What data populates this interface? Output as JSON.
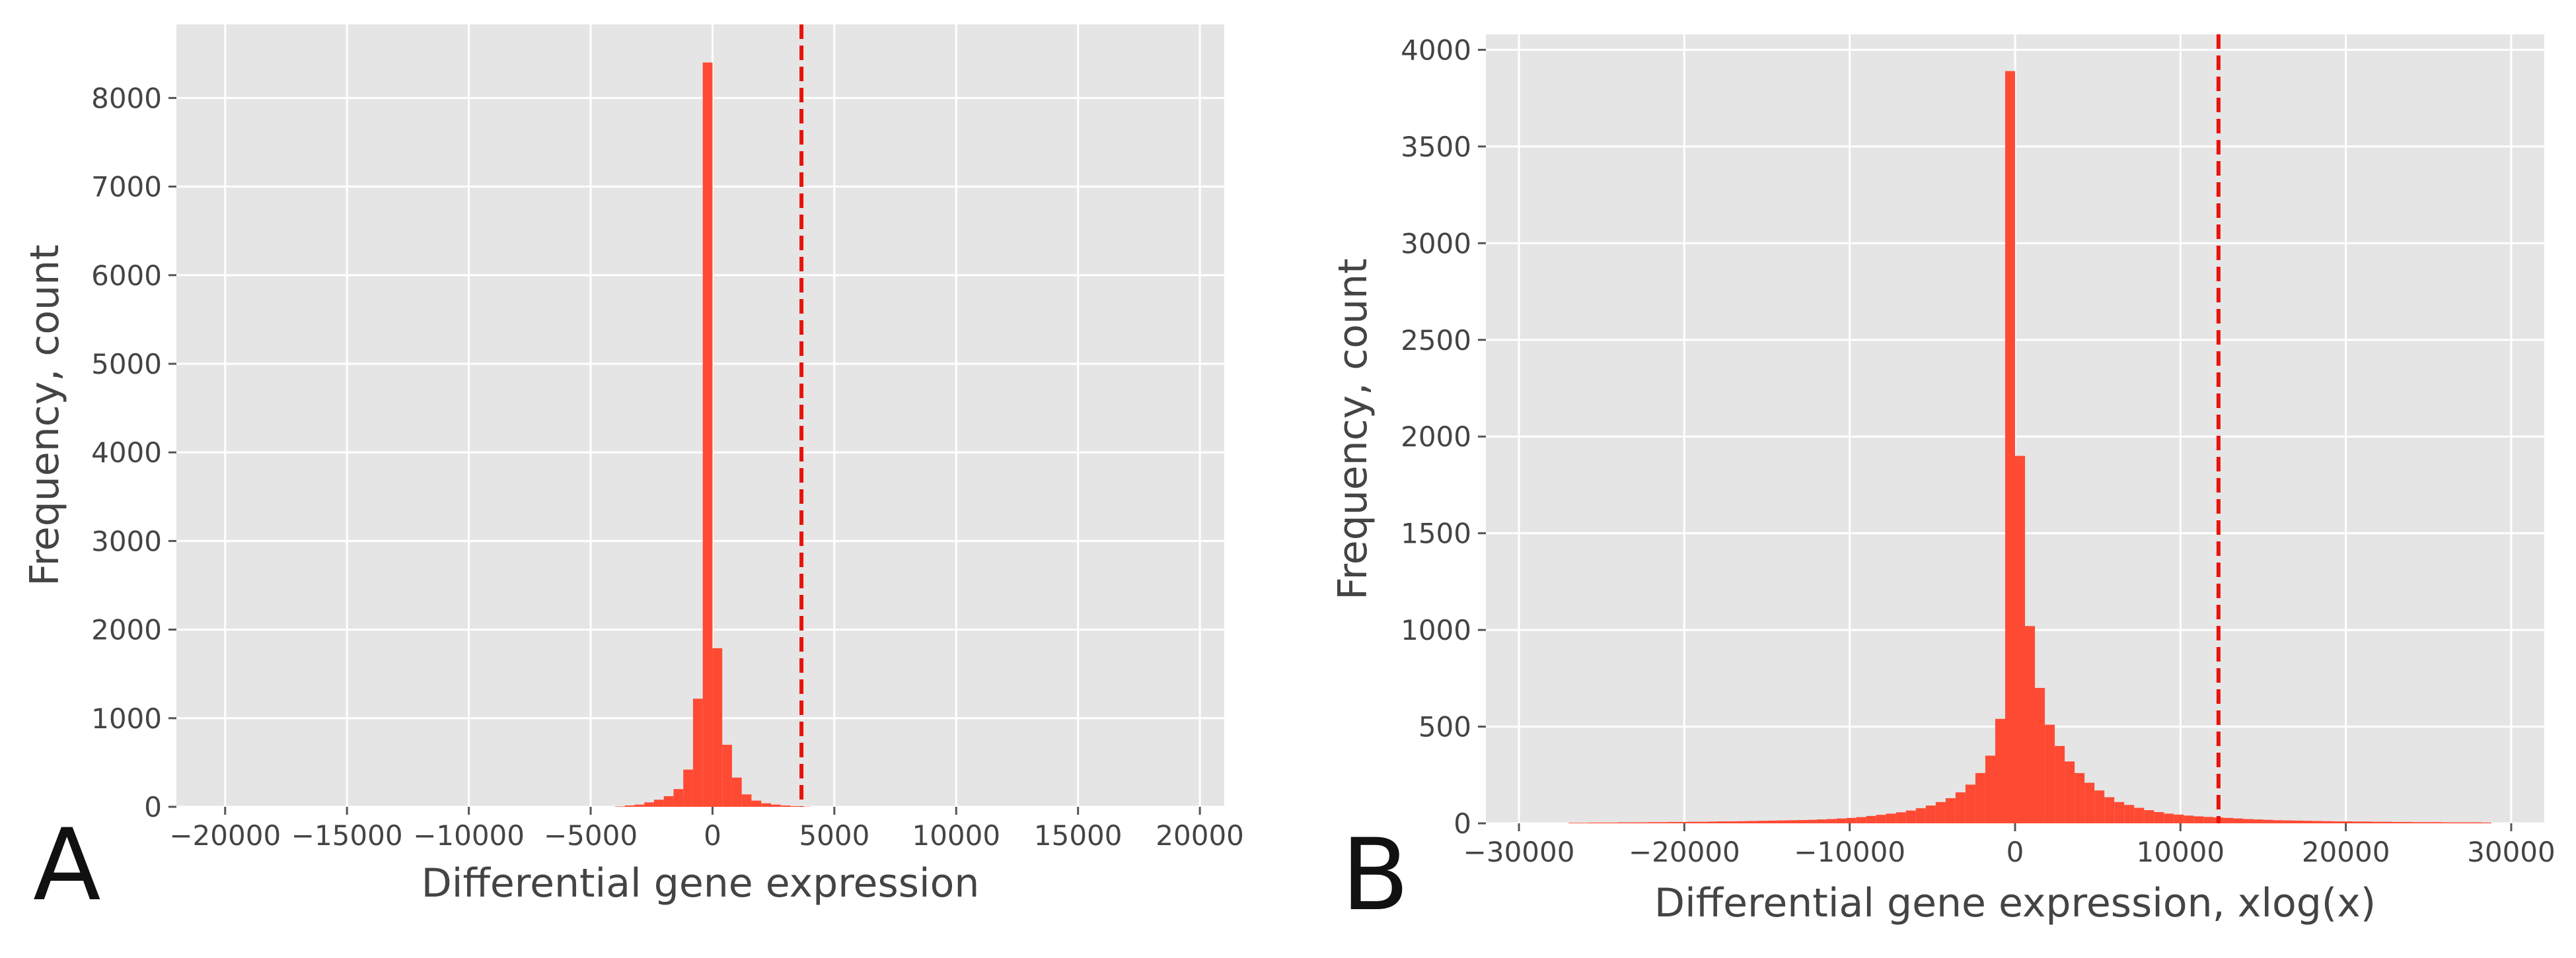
{
  "chart_data": [
    {
      "panel_label": "A",
      "type": "bar",
      "subtype": "histogram",
      "xlabel": "Differential gene expression",
      "ylabel": "Frequency, count",
      "xlim": [
        -22000,
        21000
      ],
      "ylim": [
        0,
        8830
      ],
      "xticks": [
        -20000,
        -15000,
        -10000,
        -5000,
        0,
        5000,
        10000,
        15000,
        20000
      ],
      "xtick_labels": [
        "−20000",
        "−15000",
        "−10000",
        "−5000",
        "0",
        "5000",
        "10000",
        "15000",
        "20000"
      ],
      "yticks": [
        0,
        1000,
        2000,
        3000,
        4000,
        5000,
        6000,
        7000,
        8000
      ],
      "ytick_labels": [
        "0",
        "1000",
        "2000",
        "3000",
        "4000",
        "5000",
        "6000",
        "7000",
        "8000"
      ],
      "bin_width": 400,
      "bins_start": [
        -4000,
        -3600,
        -3200,
        -2800,
        -2400,
        -2000,
        -1600,
        -1200,
        -800,
        -400,
        0,
        400,
        800,
        1200,
        1600,
        2000,
        2400,
        2800,
        3200,
        3600
      ],
      "values": [
        5,
        15,
        25,
        50,
        80,
        120,
        200,
        420,
        1220,
        8400,
        1790,
        700,
        330,
        140,
        70,
        40,
        25,
        15,
        8,
        3
      ],
      "reference_line_x": 3650,
      "grid": true,
      "colors": {
        "bars": "#ff4a33",
        "reference_line": "#e8130b",
        "background": "#e5e5e5"
      }
    },
    {
      "panel_label": "B",
      "type": "bar",
      "subtype": "histogram",
      "xlabel": "Differential gene expression, xlog(x)",
      "ylabel": "Frequency, count",
      "xlim": [
        -32000,
        32000
      ],
      "ylim": [
        0,
        4080
      ],
      "xticks": [
        -30000,
        -20000,
        -10000,
        0,
        10000,
        20000,
        30000
      ],
      "xtick_labels": [
        "−30000",
        "−20000",
        "−10000",
        "0",
        "10000",
        "20000",
        "30000"
      ],
      "yticks": [
        0,
        500,
        1000,
        1500,
        2000,
        2500,
        3000,
        3500,
        4000
      ],
      "ytick_labels": [
        "0",
        "500",
        "1000",
        "1500",
        "2000",
        "2500",
        "3000",
        "3500",
        "4000"
      ],
      "bin_width": 600,
      "bins_start": [
        -27000,
        -26400,
        -25800,
        -25200,
        -24600,
        -24000,
        -23400,
        -22800,
        -22200,
        -21600,
        -21000,
        -20400,
        -19800,
        -19200,
        -18600,
        -18000,
        -17400,
        -16800,
        -16200,
        -15600,
        -15000,
        -14400,
        -13800,
        -13200,
        -12600,
        -12000,
        -11400,
        -10800,
        -10200,
        -9600,
        -9000,
        -8400,
        -7800,
        -7200,
        -6600,
        -6000,
        -5400,
        -4800,
        -4200,
        -3600,
        -3000,
        -2400,
        -1800,
        -1200,
        -600,
        0,
        600,
        1200,
        1800,
        2400,
        3000,
        3600,
        4200,
        4800,
        5400,
        6000,
        6600,
        7200,
        7800,
        8400,
        9000,
        9600,
        10200,
        10800,
        11400,
        12000,
        12600,
        13200,
        13800,
        14400,
        15000,
        15600,
        16200,
        16800,
        17400,
        18000,
        18600,
        19200,
        19800,
        20400,
        21000,
        21600,
        22200,
        22800,
        23400,
        24000,
        24600,
        25200,
        25800,
        26400,
        27000,
        27600,
        28200
      ],
      "values": [
        3,
        3,
        4,
        4,
        4,
        5,
        5,
        5,
        6,
        6,
        7,
        7,
        8,
        8,
        9,
        10,
        10,
        11,
        12,
        13,
        14,
        15,
        16,
        17,
        18,
        20,
        22,
        25,
        28,
        32,
        38,
        44,
        50,
        57,
        66,
        78,
        92,
        110,
        130,
        160,
        200,
        260,
        350,
        540,
        3890,
        1900,
        1020,
        700,
        510,
        400,
        320,
        260,
        210,
        170,
        135,
        110,
        95,
        80,
        68,
        58,
        50,
        45,
        40,
        36,
        33,
        30,
        28,
        25,
        22,
        20,
        18,
        16,
        15,
        14,
        13,
        12,
        11,
        10,
        10,
        9,
        9,
        8,
        8,
        7,
        7,
        6,
        6,
        6,
        5,
        5,
        5,
        5,
        4
      ],
      "reference_line_x": 12300,
      "grid": true,
      "colors": {
        "bars": "#ff4a33",
        "reference_line": "#e8130b",
        "background": "#e5e5e5"
      }
    }
  ]
}
